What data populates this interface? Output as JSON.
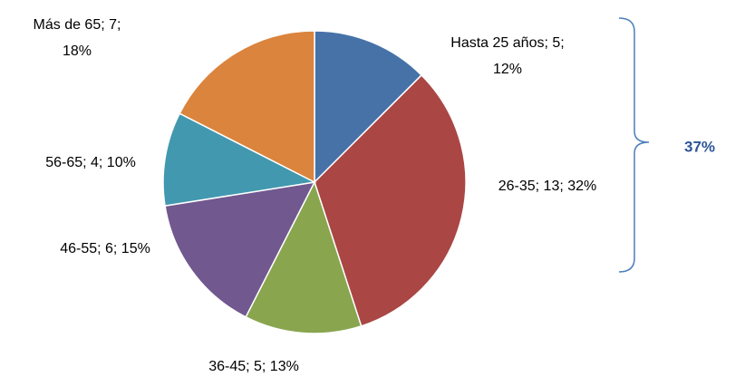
{
  "chart_data": {
    "type": "pie",
    "values": [
      5,
      13,
      5,
      6,
      4,
      7
    ],
    "value_labels": [
      "Hasta 25 años; 5; 12%",
      "26-35; 13; 32%",
      "36-45; 5; 13%",
      "46-55; 6; 15%",
      "56-65; 4; 10%",
      "Más de 65; 7; 18%"
    ],
    "colors": [
      "#4672a8",
      "#aa4644",
      "#89a54e",
      "#71588f",
      "#4298af",
      "#db843d"
    ],
    "annotation": "37%"
  }
}
